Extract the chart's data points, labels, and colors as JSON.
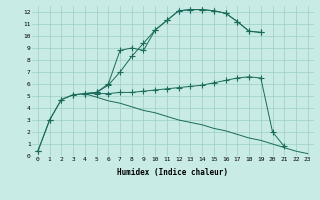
{
  "xlabel": "Humidex (Indice chaleur)",
  "background_color": "#c8ebe6",
  "grid_color": "#9ecec7",
  "line_color": "#1a6b5a",
  "xlim": [
    -0.5,
    23.5
  ],
  "ylim": [
    0,
    12.5
  ],
  "xticks": [
    0,
    1,
    2,
    3,
    4,
    5,
    6,
    7,
    8,
    9,
    10,
    11,
    12,
    13,
    14,
    15,
    16,
    17,
    18,
    19,
    20,
    21,
    22,
    23
  ],
  "yticks": [
    0,
    1,
    2,
    3,
    4,
    5,
    6,
    7,
    8,
    9,
    10,
    11,
    12
  ],
  "series1_x": [
    0,
    1,
    2,
    3,
    4,
    5,
    6,
    7,
    8,
    9,
    10,
    11,
    12,
    13,
    14,
    15,
    16,
    17,
    18,
    19
  ],
  "series1_y": [
    0.4,
    3.0,
    4.7,
    5.1,
    5.2,
    5.3,
    5.9,
    7.0,
    8.3,
    9.4,
    10.5,
    11.3,
    12.1,
    12.2,
    12.2,
    12.1,
    11.9,
    11.2,
    10.4,
    10.3
  ],
  "series2_x": [
    0,
    1,
    2,
    3,
    4,
    5,
    6,
    7,
    8,
    9,
    10,
    11,
    12,
    13,
    14,
    15,
    16,
    17,
    18,
    19
  ],
  "series2_y": [
    0.4,
    3.0,
    4.7,
    5.1,
    5.2,
    5.3,
    6.0,
    8.8,
    9.0,
    8.8,
    10.5,
    11.3,
    12.1,
    12.2,
    12.2,
    12.1,
    11.9,
    11.2,
    10.4,
    10.3
  ],
  "series3_x": [
    4,
    5,
    6,
    7,
    8,
    9,
    10,
    11,
    12,
    13,
    14,
    15,
    16,
    17,
    18,
    19,
    20,
    21
  ],
  "series3_y": [
    5.2,
    5.2,
    5.2,
    5.3,
    5.3,
    5.4,
    5.5,
    5.6,
    5.7,
    5.8,
    5.9,
    6.1,
    6.3,
    6.5,
    6.6,
    6.5,
    2.0,
    0.8
  ],
  "series4_x": [
    4,
    5,
    6,
    7,
    8,
    9,
    10,
    11,
    12,
    13,
    14,
    15,
    16,
    17,
    18,
    19,
    20,
    21,
    22,
    23
  ],
  "series4_y": [
    5.2,
    4.9,
    4.6,
    4.4,
    4.1,
    3.8,
    3.6,
    3.3,
    3.0,
    2.8,
    2.6,
    2.3,
    2.1,
    1.8,
    1.5,
    1.3,
    1.0,
    0.7,
    0.4,
    0.2
  ]
}
